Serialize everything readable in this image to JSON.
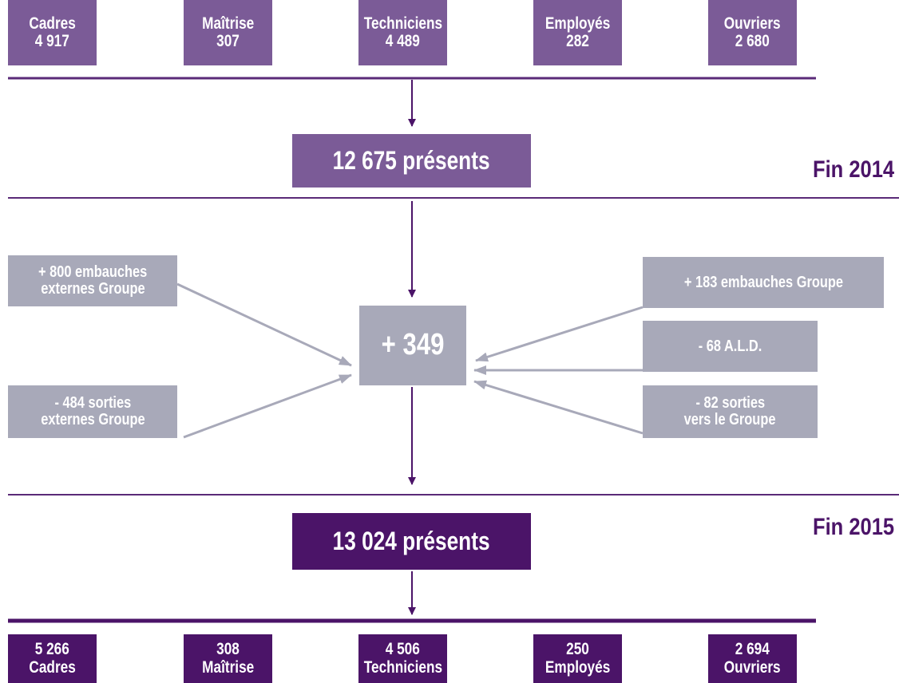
{
  "top_categories": [
    {
      "label": "Cadres",
      "value": "4 917"
    },
    {
      "label": "Maîtrise",
      "value": "307"
    },
    {
      "label": "Techniciens",
      "value": "4 489"
    },
    {
      "label": "Employés",
      "value": "282"
    },
    {
      "label": "Ouvriers",
      "value": "2 680"
    }
  ],
  "start": {
    "total": "12 675 présents",
    "period": "Fin 2014"
  },
  "change": {
    "net": "+ 349",
    "left": [
      {
        "lines": [
          "+ 800 embauches",
          "externes Groupe"
        ]
      },
      {
        "lines": [
          "- 484 sorties",
          "externes Groupe"
        ]
      }
    ],
    "right": [
      {
        "lines": [
          "+ 183 embauches Groupe"
        ]
      },
      {
        "lines": [
          "- 68 A.L.D."
        ]
      },
      {
        "lines": [
          "- 82 sorties",
          "vers le Groupe"
        ]
      }
    ]
  },
  "end": {
    "total": "13 024 présents",
    "period": "Fin 2015"
  },
  "bottom_categories": [
    {
      "value": "5 266",
      "label": "Cadres"
    },
    {
      "value": "308",
      "label": "Maîtrise"
    },
    {
      "value": "4 506",
      "label": "Techniciens"
    },
    {
      "value": "250",
      "label": "Employés"
    },
    {
      "value": "2 694",
      "label": "Ouvriers"
    }
  ]
}
